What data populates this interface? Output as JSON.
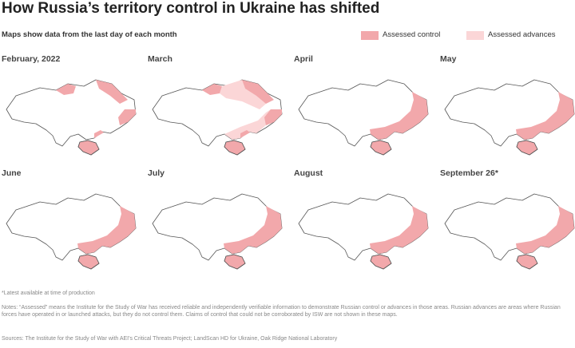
{
  "header": {
    "title": "How Russia’s territory control in Ukraine has shifted",
    "subtitle": "Maps show data from the last day of each month"
  },
  "legend": [
    {
      "label": "Assessed control"
    },
    {
      "label": "Assessed advances"
    }
  ],
  "panels": [
    {
      "label": "February, 2022"
    },
    {
      "label": "March"
    },
    {
      "label": "April"
    },
    {
      "label": "May"
    },
    {
      "label": "June"
    },
    {
      "label": "July"
    },
    {
      "label": "August"
    },
    {
      "label": "September 26*"
    }
  ],
  "footnote": "*Latest available at time of production",
  "notes": "Notes: “Assessed” means the Institute for the Study of War has received reliable and independently verifiable information to demonstrate Russian control or advances in those areas. Russian advances are areas where Russian forces have operated in or launched attacks, but they do not control them. Claims of control that could not be corroborated by ISW are not shown in these maps.",
  "sources": "Sources: The Institute for the Study of War with AEI's Critical Threats Project; LandScan HD for Ukraine, Oak Ridge National Laboratory"
}
